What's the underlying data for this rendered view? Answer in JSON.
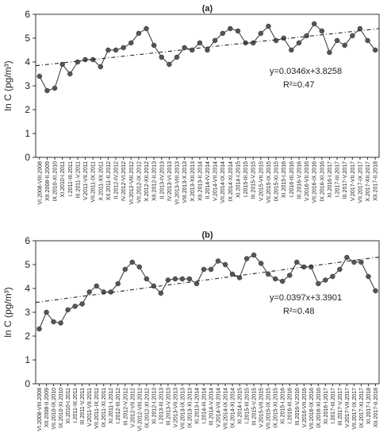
{
  "chart_data": [
    {
      "type": "line",
      "title": "(a)",
      "ylabel": "ln C (pg/m³)",
      "categories": [
        "VI.2008-VIII.2008",
        "XII.2008-II.2009",
        "IX.2010-XI.2010",
        "XI.2010-I.2011",
        "I.2011-III.2011",
        "III.2011-V.2011",
        "V.2011-VII.2011",
        "VII.2011-IX.2011",
        "X.2011-XII.2011",
        "XII.2011-II.2012",
        "II.2012-IV.2012",
        "IV.2012-VI.2012",
        "VI.2012-VIII.2012",
        "VII.2012-IX.2012",
        "X.2012-XII.2012",
        "XII.2012-II.2013",
        "II.2013-IV.2013",
        "IV.2013-VI.2013",
        "VI.2013-VIII.2013",
        "VIII.2013-X.2013",
        "X.2013-XII.2013",
        "XII.2013-II.2014",
        "II.2014-IV.2014",
        "V.2014-VII.2014",
        "VII.2014-IX.2014",
        "IX.2014-XI.2014",
        "XI.2014-I.2015",
        "I.2015-III.2015",
        "III.2015-V.2015",
        "V.2015-VII.2015",
        "VII.2015-IX.2015",
        "IX.2015-XI.2015",
        "XI.2015-I.2016",
        "I.2016-III.2016",
        "III.2016-V.2016",
        "V.2016-VII.2016",
        "VII.2016-IX.2016",
        "IX.2016-XI.2016",
        "XI.2016-I.2017",
        "I.2017-III.2017",
        "III.2017-V.2017",
        "V.2017-VII.2017",
        "VII.2017-IX.2017",
        "X.2017-XII.2017",
        "XII.2017-II.2018"
      ],
      "values": [
        3.4,
        2.8,
        2.9,
        3.9,
        3.5,
        4.0,
        4.1,
        4.1,
        3.8,
        4.5,
        4.5,
        4.6,
        4.8,
        5.2,
        5.4,
        4.7,
        4.2,
        3.9,
        4.2,
        4.6,
        4.5,
        4.8,
        4.5,
        4.9,
        5.2,
        5.4,
        5.3,
        4.8,
        4.8,
        5.2,
        5.5,
        4.9,
        5.0,
        4.5,
        4.8,
        5.1,
        5.6,
        5.3,
        4.4,
        4.9,
        4.7,
        5.1,
        5.4,
        4.9,
        4.5
      ],
      "color": "#555555",
      "trendline": {
        "slope": 0.0346,
        "intercept": 3.8258
      },
      "equation": "y=0.0346x+3.8258",
      "r2": "R²=0.47",
      "ylim": [
        0,
        6
      ],
      "yticks": [
        0,
        1,
        2,
        3,
        4,
        5,
        6
      ],
      "grid": false
    },
    {
      "type": "line",
      "title": "(b)",
      "ylabel": "ln C (pg/m³)",
      "categories": [
        "VI.2008-VIII.2008",
        "XII.2008-II.2009",
        "VII.2010-IX.2010",
        "IX.2010-XI.2010",
        "XI.2010-I.2011",
        "I.2011-III.2011",
        "III.2011-V.2011",
        "V.2011-VII.2011",
        "VII.2011-IX.2011",
        "IX.2011-XI.2011",
        "XI.2011-I.2012",
        "I.2012-III.2012",
        "III.2012-V.2012",
        "V.2012-VII.2012",
        "VI.2012-VIII.2012",
        "IX.2012-XI.2012",
        "XI.2012-I.2013",
        "I.2013-III.2013",
        "III.2013-V.2013",
        "V.2013-VII.2013",
        "VII.2013-IX.2013",
        "IX.2013-XI.2013",
        "XI.2013-I.2014",
        "I.2014-III.2014",
        "III.2014-V.2014",
        "V.2014-VII.2014",
        "VII.2014-IX.2014",
        "IX.2014-XI.2014",
        "XI.2014-I.2015",
        "I.2015-III.2015",
        "III.2015-V.2015",
        "V.2015-VII.2015",
        "VII.2015-IX.2015",
        "IX.2015-XI.2015",
        "XI.2015-I.2016",
        "I.2016-III.2016",
        "III.2016-V.2016",
        "V.2016-VII.2016",
        "VII.2016-IX.2016",
        "IX.2016-XI.2016",
        "XI.2016-I.2017",
        "I.2017-III.2017",
        "III.2017-V.2017",
        "V.2017-VII.2017",
        "VII.2017-IX.2017",
        "IX.2017-XI.2017",
        "XI.2017-I.2018",
        "XII.2017-II.2018"
      ],
      "values": [
        2.3,
        3.0,
        2.6,
        2.55,
        3.1,
        3.25,
        3.35,
        3.85,
        4.1,
        3.85,
        3.85,
        4.2,
        4.8,
        5.1,
        4.9,
        4.4,
        4.1,
        3.8,
        4.35,
        4.4,
        4.4,
        4.4,
        4.2,
        4.8,
        4.8,
        5.15,
        5.0,
        4.6,
        4.45,
        5.25,
        5.4,
        5.05,
        4.6,
        4.4,
        4.3,
        4.55,
        5.1,
        4.9,
        4.9,
        4.2,
        4.35,
        4.5,
        4.8,
        5.3,
        5.1,
        5.1,
        4.5,
        3.9
      ],
      "color": "#555555",
      "trendline": {
        "slope": 0.0397,
        "intercept": 3.3901
      },
      "equation": "y=0.0397x+3.3901",
      "r2": "R²=0.48",
      "ylim": [
        0,
        6
      ],
      "yticks": [
        0,
        1,
        2,
        3,
        4,
        5,
        6
      ],
      "grid": false
    }
  ]
}
